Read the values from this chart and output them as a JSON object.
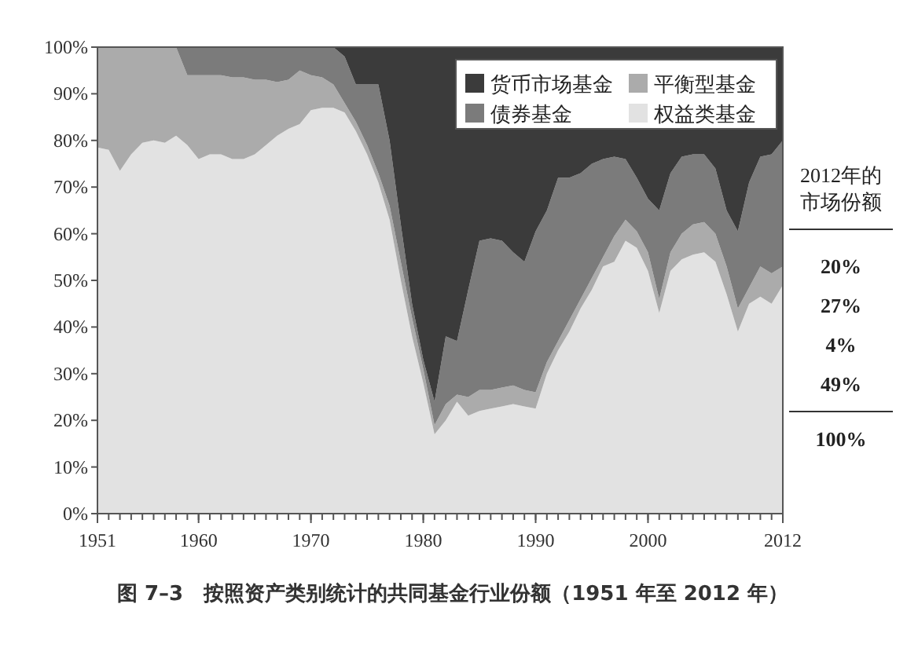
{
  "chart_data": {
    "type": "area",
    "stacked": true,
    "title": "图 7–3　按照资产类别统计的共同基金行业份额（1951 年至 2012 年）",
    "x": [
      1951,
      1952,
      1953,
      1954,
      1955,
      1956,
      1957,
      1958,
      1959,
      1960,
      1961,
      1962,
      1963,
      1964,
      1965,
      1966,
      1967,
      1968,
      1969,
      1970,
      1971,
      1972,
      1973,
      1974,
      1975,
      1976,
      1977,
      1978,
      1979,
      1980,
      1981,
      1982,
      1983,
      1984,
      1985,
      1986,
      1987,
      1988,
      1989,
      1990,
      1991,
      1992,
      1993,
      1994,
      1995,
      1996,
      1997,
      1998,
      1999,
      2000,
      2001,
      2002,
      2003,
      2004,
      2005,
      2006,
      2007,
      2008,
      2009,
      2010,
      2011,
      2012
    ],
    "series": [
      {
        "name": "权益类基金",
        "color": "#e2e2e2",
        "values": [
          78.5,
          78,
          73.5,
          77,
          79.5,
          80,
          79.5,
          81,
          79,
          76,
          77,
          77,
          76,
          76,
          77,
          79,
          81,
          82.5,
          83.5,
          86.5,
          87,
          87,
          86,
          82,
          77,
          71,
          63,
          50,
          38,
          28,
          17,
          20,
          24,
          21,
          22,
          22.5,
          23,
          23.5,
          23,
          22.5,
          30,
          35,
          39,
          44,
          48,
          53,
          54,
          58.5,
          57,
          52,
          43,
          52,
          54.5,
          55.5,
          56,
          54,
          47,
          39,
          45,
          46.5,
          45,
          49
        ]
      },
      {
        "name": "平衡型基金",
        "color": "#ababab",
        "values": [
          21.5,
          22,
          26.5,
          23,
          20.5,
          20,
          20.5,
          19,
          15,
          18,
          17,
          17,
          17.5,
          17.5,
          16,
          14,
          11.5,
          10.5,
          11.5,
          7.5,
          6.5,
          5,
          2,
          2,
          2,
          2,
          3,
          4,
          4,
          3,
          2,
          3.5,
          1.5,
          4,
          4.5,
          4,
          4,
          4,
          3.5,
          3.5,
          2.5,
          2,
          2.5,
          2,
          2.5,
          2,
          5.5,
          4.5,
          3.5,
          4,
          3,
          4,
          5.5,
          6.5,
          6.5,
          6,
          6,
          5,
          3.5,
          6.5,
          6.5,
          4
        ]
      },
      {
        "name": "债券基金",
        "color": "#7b7b7b",
        "values": [
          0,
          0,
          0,
          0,
          0,
          0,
          0,
          0,
          6,
          6,
          6,
          6,
          6.5,
          6.5,
          7,
          7,
          7.5,
          7,
          5,
          6,
          6.5,
          8,
          10,
          8,
          13,
          19,
          14,
          8,
          3,
          2,
          5,
          14.5,
          11.5,
          23,
          32,
          32.5,
          31.5,
          28.5,
          27.5,
          34.5,
          32.5,
          35,
          30.5,
          27,
          24.5,
          21,
          17,
          13,
          11.5,
          11.5,
          19,
          17,
          16.5,
          15,
          14.5,
          14,
          12,
          16.5,
          22.5,
          23.5,
          25.5,
          27
        ]
      },
      {
        "name": "货币市场基金",
        "color": "#3b3b3b",
        "values": [
          0,
          0,
          0,
          0,
          0,
          0,
          0,
          0,
          0,
          0,
          0,
          0,
          0,
          0,
          0,
          0,
          0,
          0,
          0,
          0,
          0,
          0,
          2,
          8,
          8,
          8,
          20,
          38,
          55,
          67,
          76,
          62,
          63,
          52,
          41.5,
          41,
          41.5,
          44,
          46,
          39.5,
          35,
          28,
          28,
          27,
          25,
          24,
          23.5,
          24,
          28,
          32.5,
          35,
          27,
          23.5,
          23,
          23,
          26,
          35,
          39.5,
          29,
          23.5,
          23,
          20
        ]
      }
    ],
    "legend": "top right",
    "xlim": [
      1951,
      2012
    ],
    "xticks": [
      1951,
      1960,
      1970,
      1980,
      1990,
      2000,
      2012
    ],
    "ylim": [
      0,
      100
    ],
    "yticks": [
      {
        "value": 0,
        "label": "0%"
      },
      {
        "value": 10,
        "label": "10%"
      },
      {
        "value": 20,
        "label": "20%"
      },
      {
        "value": 30,
        "label": "30%"
      },
      {
        "value": 40,
        "label": "40%"
      },
      {
        "value": 50,
        "label": "50%"
      },
      {
        "value": 60,
        "label": "60%"
      },
      {
        "value": 70,
        "label": "70%"
      },
      {
        "value": 80,
        "label": "80%"
      },
      {
        "value": 90,
        "label": "90%"
      },
      {
        "value": 100,
        "label": "100%"
      }
    ],
    "annotations": [
      "2012年的",
      "市场份额",
      "20%",
      "27%",
      "4%",
      "49%",
      "100%"
    ]
  }
}
